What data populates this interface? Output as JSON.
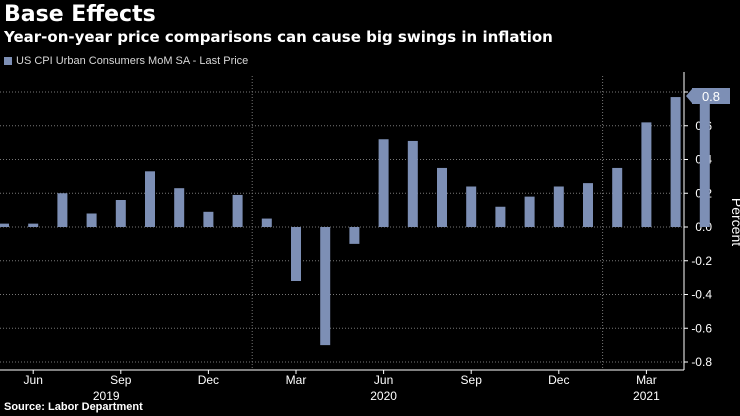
{
  "title": "Base Effects",
  "subtitle": "Year-on-year price comparisons can cause big swings in inflation",
  "legend": {
    "label": "US CPI Urban Consumers MoM SA - Last Price"
  },
  "source": "Source: Labor Department",
  "colors": {
    "bar": "#7d8fb5",
    "background": "#000000",
    "text": "#ffffff",
    "grid": "#777777"
  },
  "chart_data": {
    "type": "bar",
    "title": "",
    "ylabel": "Percent",
    "xlabel": "",
    "ylim": [
      -0.8,
      0.8
    ],
    "yticks": [
      -0.8,
      -0.6,
      -0.4,
      -0.2,
      0.0,
      0.2,
      0.4,
      0.6,
      0.8
    ],
    "ytick_labels": [
      "-0.8",
      "-0.6",
      "-0.4",
      "-0.2",
      "0.0",
      "0.2",
      "0.4",
      "0.6",
      "0.8"
    ],
    "grid": true,
    "categories": [
      "Apr 2019",
      "May 2019",
      "Jun 2019",
      "Jul 2019",
      "Aug 2019",
      "Sep 2019",
      "Oct 2019",
      "Nov 2019",
      "Dec 2019",
      "Jan 2020",
      "Feb 2020",
      "Mar 2020",
      "Apr 2020",
      "May 2020",
      "Jun 2020",
      "Jul 2020",
      "Aug 2020",
      "Sep 2020",
      "Oct 2020",
      "Nov 2020",
      "Dec 2020",
      "Jan 2021",
      "Feb 2021",
      "Mar 2021",
      "Apr 2021"
    ],
    "series": [
      {
        "name": "US CPI Urban Consumers MoM SA - Last Price",
        "values": [
          0.02,
          0.02,
          0.2,
          0.08,
          0.16,
          0.33,
          0.23,
          0.09,
          0.19,
          0.05,
          -0.32,
          -0.7,
          -0.1,
          0.52,
          0.51,
          0.35,
          0.24,
          0.12,
          0.18,
          0.24,
          0.26,
          0.35,
          0.62,
          0.77,
          0.77
        ]
      }
    ],
    "x_month_labels": [
      {
        "label": "Jun",
        "index": 1
      },
      {
        "label": "Sep",
        "index": 4
      },
      {
        "label": "Dec",
        "index": 7
      },
      {
        "label": "Mar",
        "index": 10
      },
      {
        "label": "Jun",
        "index": 13
      },
      {
        "label": "Sep",
        "index": 16
      },
      {
        "label": "Dec",
        "index": 19
      },
      {
        "label": "Mar",
        "index": 22
      }
    ],
    "x_year_labels": [
      {
        "label": "2019",
        "index": 3.5
      },
      {
        "label": "2020",
        "index": 13
      },
      {
        "label": "2021",
        "index": 22
      }
    ],
    "last_value_label": "0.8"
  }
}
